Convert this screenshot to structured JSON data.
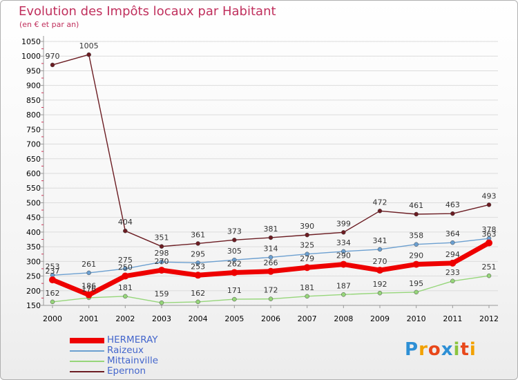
{
  "header": {
    "title": "Evolution des Impôts locaux par Habitant",
    "subtitle": "(en € et par an)"
  },
  "logo": {
    "text": "Proxiti",
    "colors": [
      "#2d8fd5",
      "#f2a100",
      "#e8471a",
      "#2d8fd5",
      "#8cc43f",
      "#e8471a",
      "#f2a100"
    ]
  },
  "chart_data": {
    "type": "line",
    "title": "Evolution des Impôts locaux par Habitant",
    "subtitle": "(en € et par an)",
    "xlabel": "",
    "ylabel": "",
    "x": [
      "2000",
      "2001",
      "2002",
      "2003",
      "2004",
      "2005",
      "2006",
      "2007",
      "2008",
      "2009",
      "2010",
      "2011",
      "2012"
    ],
    "yticks": [
      150,
      200,
      250,
      300,
      350,
      400,
      450,
      500,
      550,
      600,
      650,
      700,
      750,
      800,
      850,
      900,
      950,
      1000,
      1050
    ],
    "ylim": [
      150,
      1050
    ],
    "grid": "horizontal",
    "legend_position": "bottom-left",
    "series": [
      {
        "name": "Epernon",
        "color": "#6b1c22",
        "values": [
          970,
          1005,
          404,
          351,
          361,
          373,
          381,
          390,
          399,
          472,
          461,
          463,
          493
        ]
      },
      {
        "name": "Raizeux",
        "color": "#6b9fd0",
        "values": [
          253,
          261,
          275,
          298,
          295,
          305,
          314,
          325,
          334,
          341,
          358,
          364,
          378
        ]
      },
      {
        "name": "Mittainville",
        "color": "#96d67a",
        "values": [
          162,
          176,
          181,
          159,
          162,
          171,
          172,
          181,
          187,
          192,
          195,
          233,
          251
        ]
      },
      {
        "name": "HERMERAY",
        "color": "#ee0000",
        "values": [
          237,
          186,
          250,
          270,
          253,
          262,
          266,
          279,
          290,
          270,
          290,
          294,
          363
        ]
      }
    ],
    "legend_order": [
      "HERMERAY",
      "Raizeux",
      "Mittainville",
      "Epernon"
    ]
  }
}
